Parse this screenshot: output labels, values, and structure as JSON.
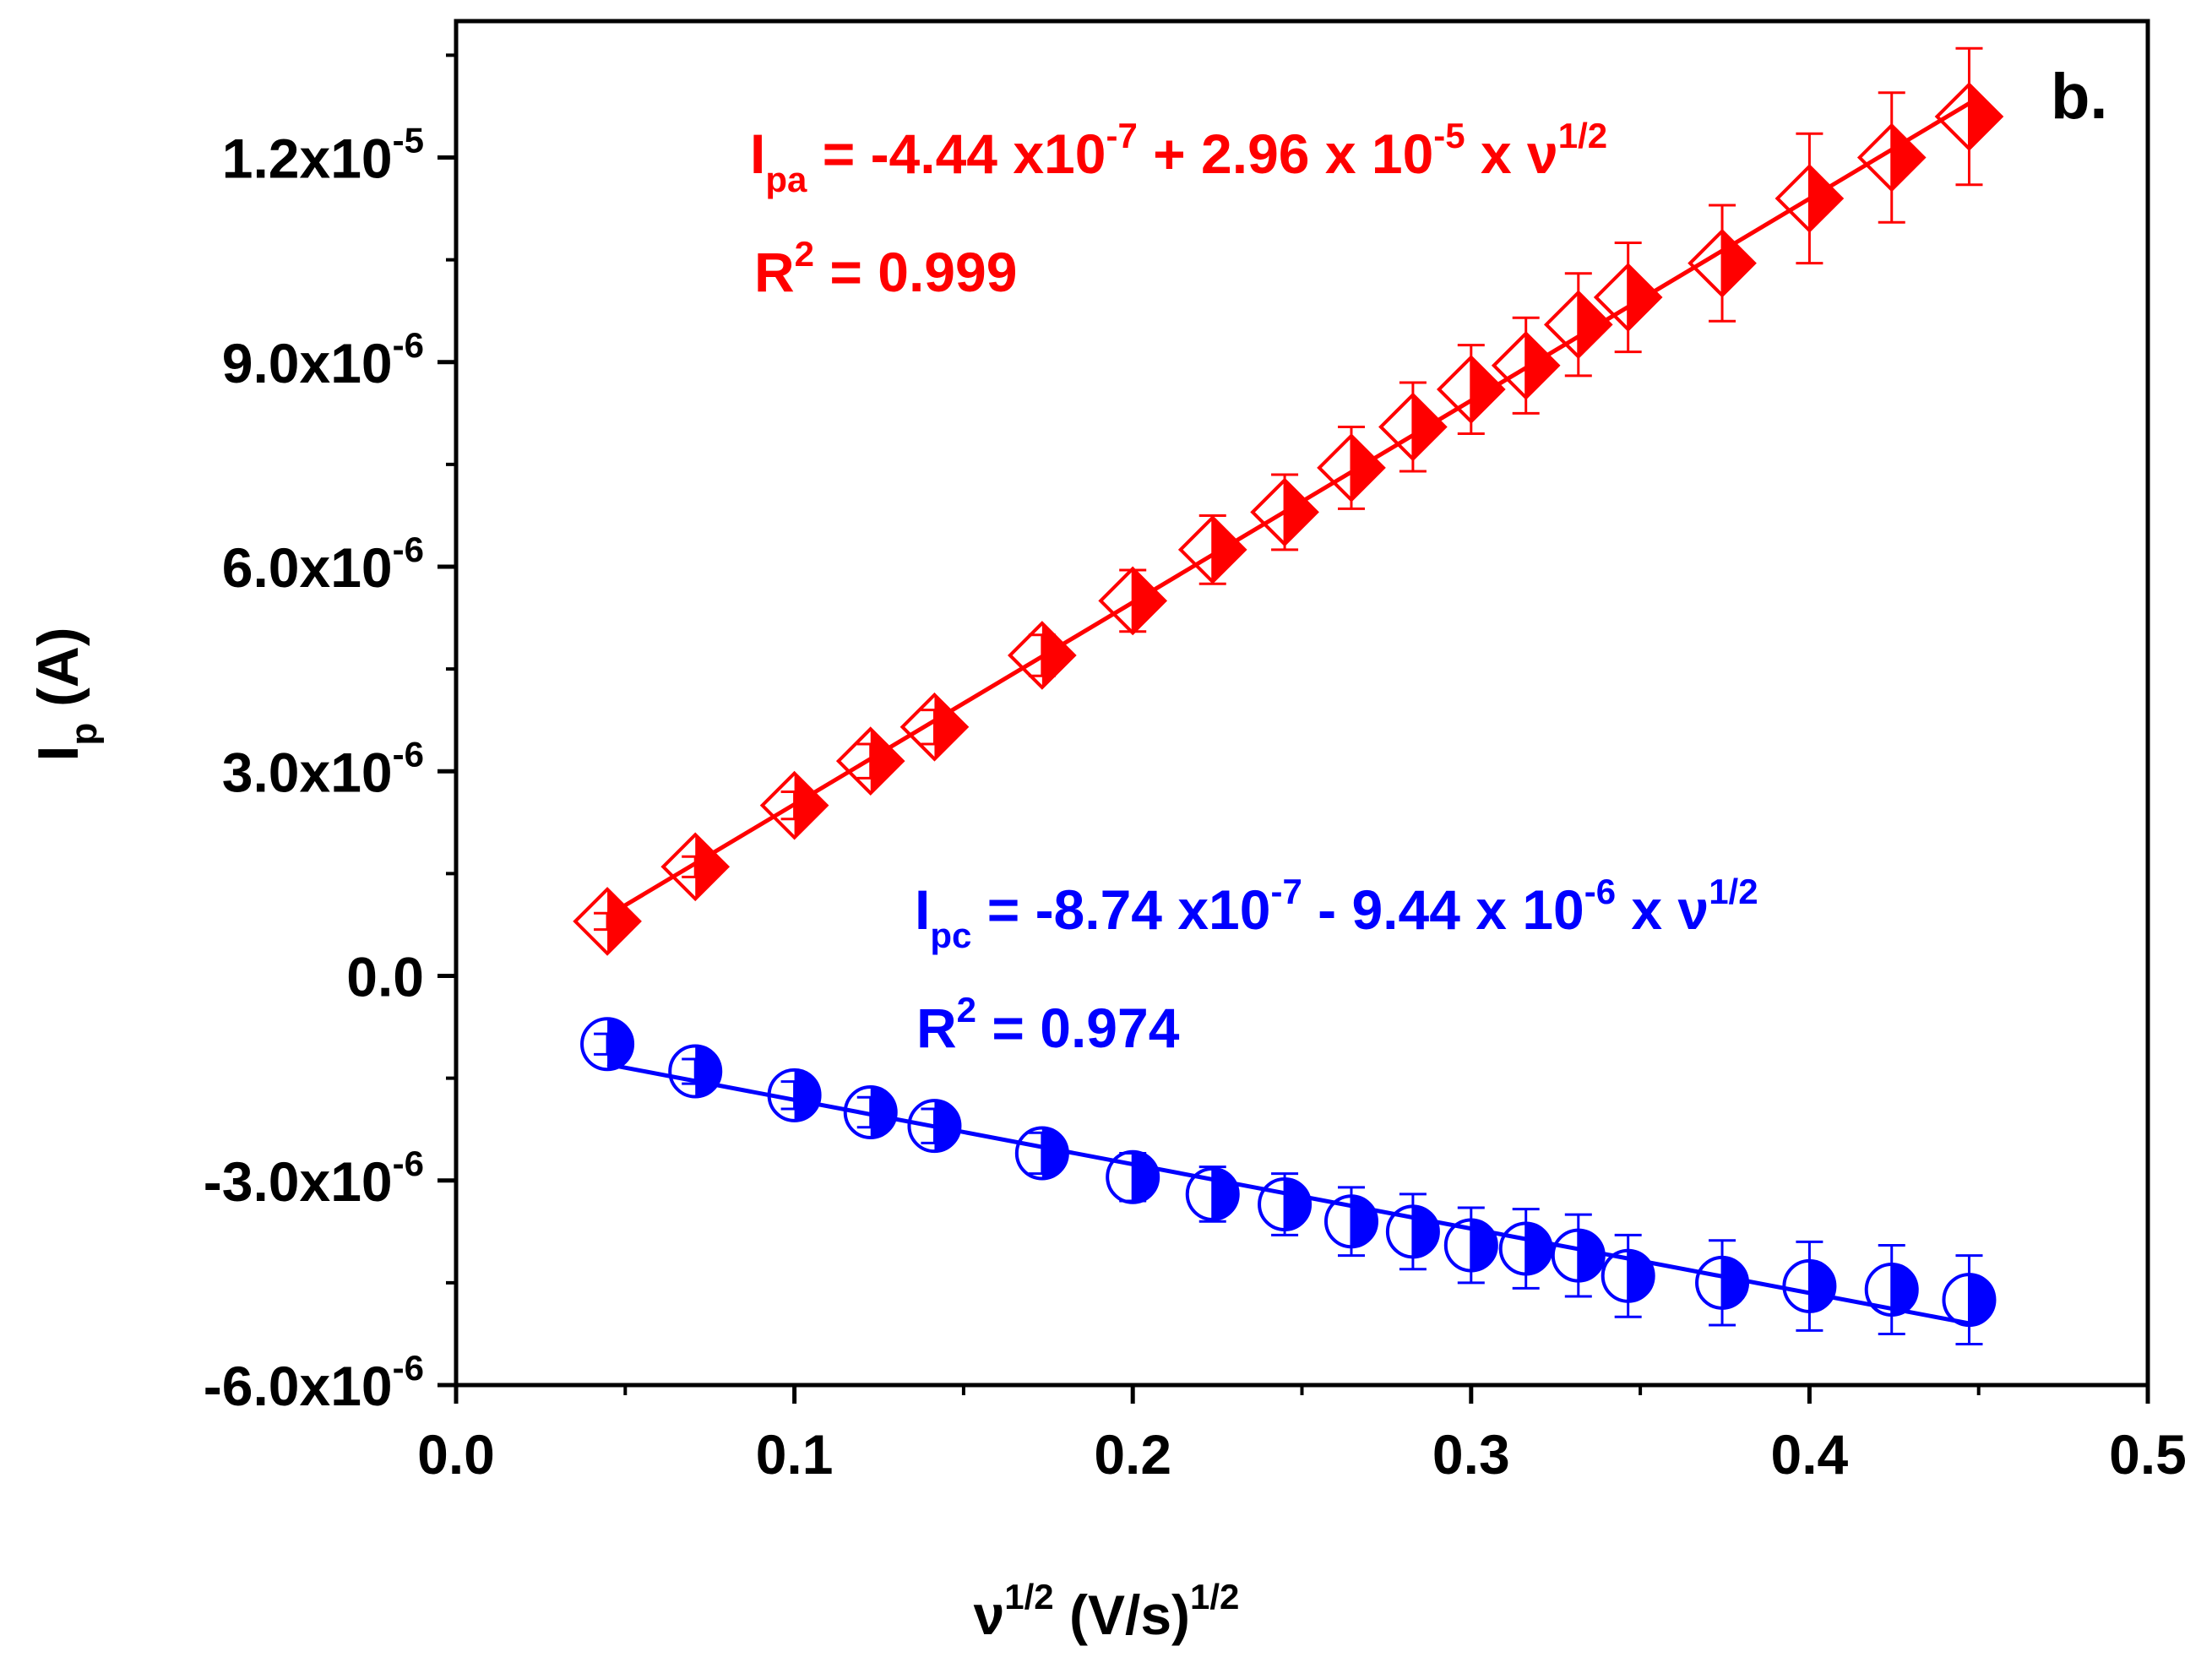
{
  "panel_label": "b.",
  "colors": {
    "anodic": "#ff0000",
    "cathodic": "#0000ff",
    "axis": "#000000"
  },
  "chart_data": {
    "type": "scatter",
    "xlabel": {
      "main": "ν",
      "sup1": "1/2",
      "rest": " (V/s)",
      "sup2": "1/2"
    },
    "ylabel": {
      "main": "I",
      "sub": "p",
      "rest": " (A)"
    },
    "xlim": [
      0.0,
      0.5
    ],
    "ylim": [
      -6e-06,
      1.4e-05
    ],
    "xticks": [
      {
        "value": 0.0,
        "label": "0.0"
      },
      {
        "value": 0.1,
        "label": "0.1"
      },
      {
        "value": 0.2,
        "label": "0.2"
      },
      {
        "value": 0.3,
        "label": "0.3"
      },
      {
        "value": 0.4,
        "label": "0.4"
      },
      {
        "value": 0.5,
        "label": "0.5"
      }
    ],
    "yticks": [
      {
        "value": -6e-06,
        "mant": "-6.0x10",
        "exp": "-6"
      },
      {
        "value": -3e-06,
        "mant": "-3.0x10",
        "exp": "-6"
      },
      {
        "value": 0.0,
        "mant": "0.0",
        "exp": ""
      },
      {
        "value": 3e-06,
        "mant": "3.0x10",
        "exp": "-6"
      },
      {
        "value": 6e-06,
        "mant": "6.0x10",
        "exp": "-6"
      },
      {
        "value": 9e-06,
        "mant": "9.0x10",
        "exp": "-6"
      },
      {
        "value": 1.2e-05,
        "mant": "1.2x10",
        "exp": "-5"
      }
    ],
    "x": [
      0.0447,
      0.0707,
      0.1,
      0.1225,
      0.1414,
      0.1732,
      0.2,
      0.2236,
      0.2449,
      0.2646,
      0.2828,
      0.3,
      0.3162,
      0.3317,
      0.3464,
      0.3742,
      0.4,
      0.4243,
      0.4472
    ],
    "series": [
      {
        "name": "Ipa",
        "marker": "half-filled-diamond",
        "color": "#ff0000",
        "values": [
          8e-07,
          1.6e-06,
          2.5e-06,
          3.15e-06,
          3.65e-06,
          4.7e-06,
          5.5e-06,
          6.25e-06,
          6.8e-06,
          7.45e-06,
          8.05e-06,
          8.6e-06,
          8.95e-06,
          9.55e-06,
          9.95e-06,
          1.045e-05,
          1.14e-05,
          1.2e-05,
          1.26e-05
        ],
        "errors": [
          1.2e-07,
          1.5e-07,
          2e-07,
          2.5e-07,
          2.5e-07,
          3e-07,
          4.5e-07,
          5e-07,
          5.5e-07,
          6e-07,
          6.5e-07,
          6.5e-07,
          7e-07,
          7.5e-07,
          8e-07,
          8.5e-07,
          9.5e-07,
          9.5e-07,
          1e-06
        ],
        "fit": {
          "intercept": -4.44e-07,
          "slope": 2.96e-05,
          "x_range": [
            0.0447,
            0.4472
          ]
        },
        "equation": {
          "lhs": "I",
          "lhs_sub": "pa",
          "body1": " = -4.44 x10",
          "exp1": "-7",
          "body2": " + 2.96 x 10",
          "exp2": "-5",
          "body3": " x ν",
          "exp3": "1/2"
        },
        "r2": {
          "label": "R",
          "sup": "2",
          "value": " = 0.999"
        }
      },
      {
        "name": "Ipc",
        "marker": "half-filled-circle",
        "color": "#0000ff",
        "values": [
          -1e-06,
          -1.4e-06,
          -1.75e-06,
          -2e-06,
          -2.2e-06,
          -2.6e-06,
          -2.95e-06,
          -3.2e-06,
          -3.35e-06,
          -3.6e-06,
          -3.75e-06,
          -3.95e-06,
          -4e-06,
          -4.1e-06,
          -4.4e-06,
          -4.5e-06,
          -4.55e-06,
          -4.6e-06,
          -4.75e-06
        ],
        "errors": [
          1.5e-07,
          1.8e-07,
          2e-07,
          2.2e-07,
          2.5e-07,
          3e-07,
          3.5e-07,
          4e-07,
          4.5e-07,
          5e-07,
          5.5e-07,
          5.5e-07,
          5.8e-07,
          6e-07,
          6e-07,
          6.2e-07,
          6.5e-07,
          6.5e-07,
          6.5e-07
        ],
        "fit": {
          "intercept": -8.74e-07,
          "slope": -9.44e-06,
          "x_range": [
            0.0447,
            0.4472
          ]
        },
        "equation": {
          "lhs": "I",
          "lhs_sub": "pc",
          "body1": " = -8.74 x10",
          "exp1": "-7",
          "body2": " - 9.44 x 10",
          "exp2": "-6",
          "body3": " x ν",
          "exp3": "1/2"
        },
        "r2": {
          "label": "R",
          "sup": "2",
          "value": " = 0.974"
        }
      }
    ]
  }
}
